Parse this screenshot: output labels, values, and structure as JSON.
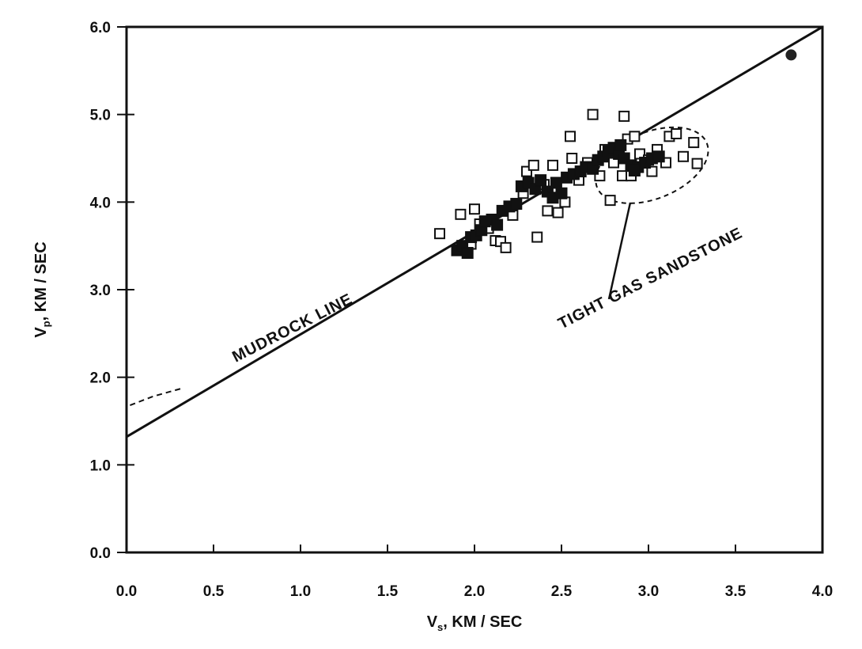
{
  "chart_data": {
    "type": "scatter",
    "title": "",
    "xlabel": "Vs, KM / SEC",
    "ylabel": "Vp, KM / SEC",
    "xlabel_main": "V",
    "xlabel_sub": "s",
    "xlabel_rest": ",  KM / SEC",
    "ylabel_main": "V",
    "ylabel_sub": "p",
    "ylabel_rest": ",  KM / SEC",
    "xlim": [
      0,
      4
    ],
    "ylim": [
      0,
      6
    ],
    "x_ticks": [
      "0.0",
      "0.5",
      "1.0",
      "1.5",
      "2.0",
      "2.5",
      "3.0",
      "3.5",
      "4.0"
    ],
    "y_ticks": [
      "0.0",
      "1.0",
      "2.0",
      "3.0",
      "4.0",
      "5.0",
      "6.0"
    ],
    "grid": false,
    "mudrock_line": {
      "label": "MUDROCK LINE",
      "intercept": 1.32,
      "slope": 1.17,
      "x_range": [
        0,
        4
      ]
    },
    "dashed_extension": [
      {
        "x": 0.02,
        "y": 1.68
      },
      {
        "x": 0.15,
        "y": 1.78
      },
      {
        "x": 0.33,
        "y": 1.88
      }
    ],
    "tight_gas_region": {
      "label": "TIGHT GAS SANDSTONE",
      "center": [
        3.02,
        4.42
      ],
      "radius_x": 0.34,
      "radius_y": 0.38,
      "rotation": -22
    },
    "filled_circle": [
      {
        "x": 3.82,
        "y": 5.68
      }
    ],
    "open_squares": [
      {
        "x": 1.8,
        "y": 3.64
      },
      {
        "x": 1.92,
        "y": 3.86
      },
      {
        "x": 1.98,
        "y": 3.52
      },
      {
        "x": 2.0,
        "y": 3.92
      },
      {
        "x": 2.03,
        "y": 3.75
      },
      {
        "x": 2.08,
        "y": 3.7
      },
      {
        "x": 2.12,
        "y": 3.56
      },
      {
        "x": 2.15,
        "y": 3.55
      },
      {
        "x": 2.18,
        "y": 3.48
      },
      {
        "x": 2.22,
        "y": 3.85
      },
      {
        "x": 2.28,
        "y": 4.1
      },
      {
        "x": 2.3,
        "y": 4.35
      },
      {
        "x": 2.34,
        "y": 4.42
      },
      {
        "x": 2.36,
        "y": 3.6
      },
      {
        "x": 2.4,
        "y": 4.2
      },
      {
        "x": 2.42,
        "y": 3.9
      },
      {
        "x": 2.45,
        "y": 4.42
      },
      {
        "x": 2.48,
        "y": 3.88
      },
      {
        "x": 2.52,
        "y": 4.0
      },
      {
        "x": 2.55,
        "y": 4.75
      },
      {
        "x": 2.56,
        "y": 4.5
      },
      {
        "x": 2.6,
        "y": 4.25
      },
      {
        "x": 2.65,
        "y": 4.45
      },
      {
        "x": 2.68,
        "y": 5.0
      },
      {
        "x": 2.72,
        "y": 4.3
      },
      {
        "x": 2.75,
        "y": 4.6
      },
      {
        "x": 2.78,
        "y": 4.02
      },
      {
        "x": 2.8,
        "y": 4.45
      },
      {
        "x": 2.85,
        "y": 4.3
      },
      {
        "x": 2.86,
        "y": 4.98
      },
      {
        "x": 2.88,
        "y": 4.72
      },
      {
        "x": 2.92,
        "y": 4.75
      },
      {
        "x": 2.95,
        "y": 4.55
      },
      {
        "x": 3.0,
        "y": 4.48
      },
      {
        "x": 3.05,
        "y": 4.6
      },
      {
        "x": 3.1,
        "y": 4.45
      },
      {
        "x": 3.12,
        "y": 4.75
      },
      {
        "x": 3.16,
        "y": 4.78
      },
      {
        "x": 3.2,
        "y": 4.52
      },
      {
        "x": 3.26,
        "y": 4.68
      },
      {
        "x": 3.28,
        "y": 4.44
      },
      {
        "x": 3.02,
        "y": 4.35
      },
      {
        "x": 2.9,
        "y": 4.3
      }
    ],
    "filled_squares": [
      {
        "x": 1.9,
        "y": 3.45
      },
      {
        "x": 1.93,
        "y": 3.5
      },
      {
        "x": 1.96,
        "y": 3.42
      },
      {
        "x": 1.98,
        "y": 3.6
      },
      {
        "x": 2.01,
        "y": 3.62
      },
      {
        "x": 2.04,
        "y": 3.68
      },
      {
        "x": 2.06,
        "y": 3.78
      },
      {
        "x": 2.1,
        "y": 3.8
      },
      {
        "x": 2.13,
        "y": 3.74
      },
      {
        "x": 2.16,
        "y": 3.9
      },
      {
        "x": 2.2,
        "y": 3.95
      },
      {
        "x": 2.24,
        "y": 3.98
      },
      {
        "x": 2.27,
        "y": 4.18
      },
      {
        "x": 2.31,
        "y": 4.22
      },
      {
        "x": 2.35,
        "y": 4.15
      },
      {
        "x": 2.38,
        "y": 4.25
      },
      {
        "x": 2.42,
        "y": 4.12
      },
      {
        "x": 2.45,
        "y": 4.05
      },
      {
        "x": 2.47,
        "y": 4.22
      },
      {
        "x": 2.5,
        "y": 4.1
      },
      {
        "x": 2.53,
        "y": 4.28
      },
      {
        "x": 2.57,
        "y": 4.32
      },
      {
        "x": 2.61,
        "y": 4.35
      },
      {
        "x": 2.64,
        "y": 4.4
      },
      {
        "x": 2.68,
        "y": 4.38
      },
      {
        "x": 2.71,
        "y": 4.48
      },
      {
        "x": 2.74,
        "y": 4.52
      },
      {
        "x": 2.77,
        "y": 4.58
      },
      {
        "x": 2.8,
        "y": 4.62
      },
      {
        "x": 2.83,
        "y": 4.55
      },
      {
        "x": 2.86,
        "y": 4.5
      },
      {
        "x": 2.9,
        "y": 4.42
      },
      {
        "x": 2.94,
        "y": 4.4
      },
      {
        "x": 2.98,
        "y": 4.45
      },
      {
        "x": 3.02,
        "y": 4.5
      },
      {
        "x": 3.06,
        "y": 4.52
      },
      {
        "x": 2.84,
        "y": 4.65
      },
      {
        "x": 2.92,
        "y": 4.36
      }
    ]
  }
}
